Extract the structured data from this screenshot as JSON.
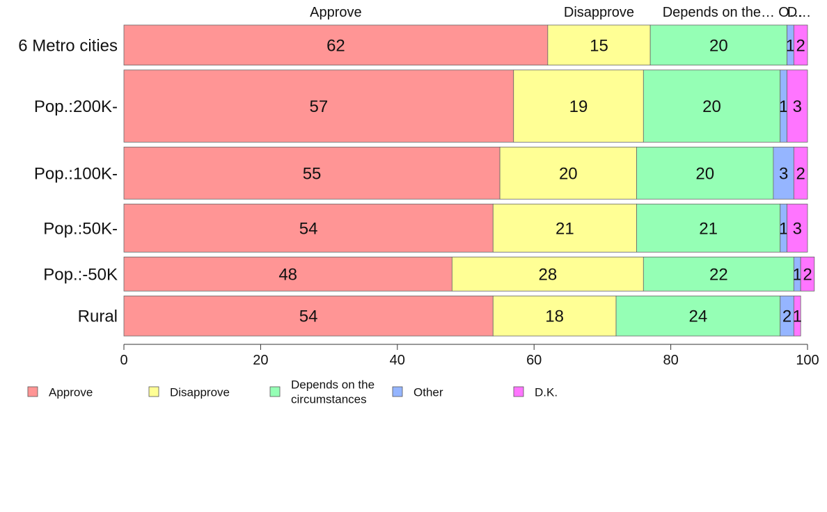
{
  "chart_data": {
    "type": "bar",
    "orientation": "horizontal",
    "stacked": true,
    "categories": [
      "6 Metro cities",
      "Pop.:200K-",
      "Pop.:100K-",
      "Pop.:50K-",
      "Pop.:-50K",
      "Rural"
    ],
    "series": [
      {
        "name": "Approve",
        "color": "#ff9595",
        "values": [
          62,
          57,
          55,
          54,
          48,
          54
        ],
        "labels": [
          "62",
          "57",
          "55",
          "54",
          "48",
          "54"
        ]
      },
      {
        "name": "Disapprove",
        "color": "#ffff95",
        "values": [
          15,
          19,
          20,
          21,
          28,
          18
        ],
        "labels": [
          "15",
          "19",
          "20",
          "21",
          "28",
          "18"
        ]
      },
      {
        "name": "Depends on the circumstances",
        "color": "#95ffb5",
        "values": [
          20,
          20,
          20,
          21,
          22,
          24
        ],
        "labels": [
          "20",
          "20",
          "20",
          "21",
          "22",
          "24"
        ]
      },
      {
        "name": "Other",
        "color": "#95b5ff",
        "values": [
          1,
          1,
          3,
          1,
          1,
          2
        ],
        "labels": [
          "1",
          "1",
          "3",
          "1",
          "1",
          "2"
        ]
      },
      {
        "name": "D.K.",
        "color": "#ff75ff",
        "values": [
          2,
          3,
          2,
          3,
          2,
          1
        ],
        "labels": [
          "2",
          "3",
          "2",
          "3",
          "2",
          "1"
        ]
      }
    ],
    "row_weights": [
      1.0,
      1.8,
      1.3,
      1.2,
      0.85,
      1.0
    ],
    "top_labels": [
      "Approve",
      "Disapprove",
      "Depends on the…",
      "O…",
      "D…"
    ],
    "legend": {
      "position": "bottom-left",
      "entries": [
        {
          "label": "Approve",
          "color": "#ff9595"
        },
        {
          "label": "Disapprove",
          "color": "#ffff95"
        },
        {
          "label": "Depends on the circumstances",
          "lines": [
            "Depends on the",
            "circumstances"
          ],
          "color": "#95ffb5"
        },
        {
          "label": "Other",
          "color": "#95b5ff"
        },
        {
          "label": "D.K.",
          "color": "#ff75ff"
        }
      ]
    },
    "xlim": [
      0,
      100
    ],
    "xticks": [
      0,
      20,
      40,
      60,
      80,
      100
    ],
    "xlabel": "",
    "ylabel": "",
    "title": "",
    "grid": false
  }
}
